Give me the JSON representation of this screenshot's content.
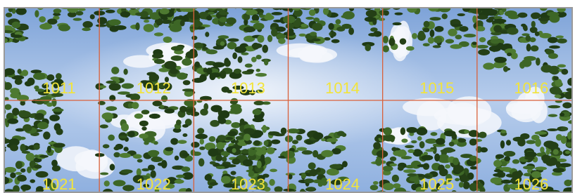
{
  "grid": {
    "rows": [
      [
        "1011",
        "1012",
        "1013",
        "1014",
        "1015",
        "1016"
      ],
      [
        "1021",
        "1022",
        "1023",
        "1024",
        "1025",
        "1026"
      ]
    ]
  }
}
